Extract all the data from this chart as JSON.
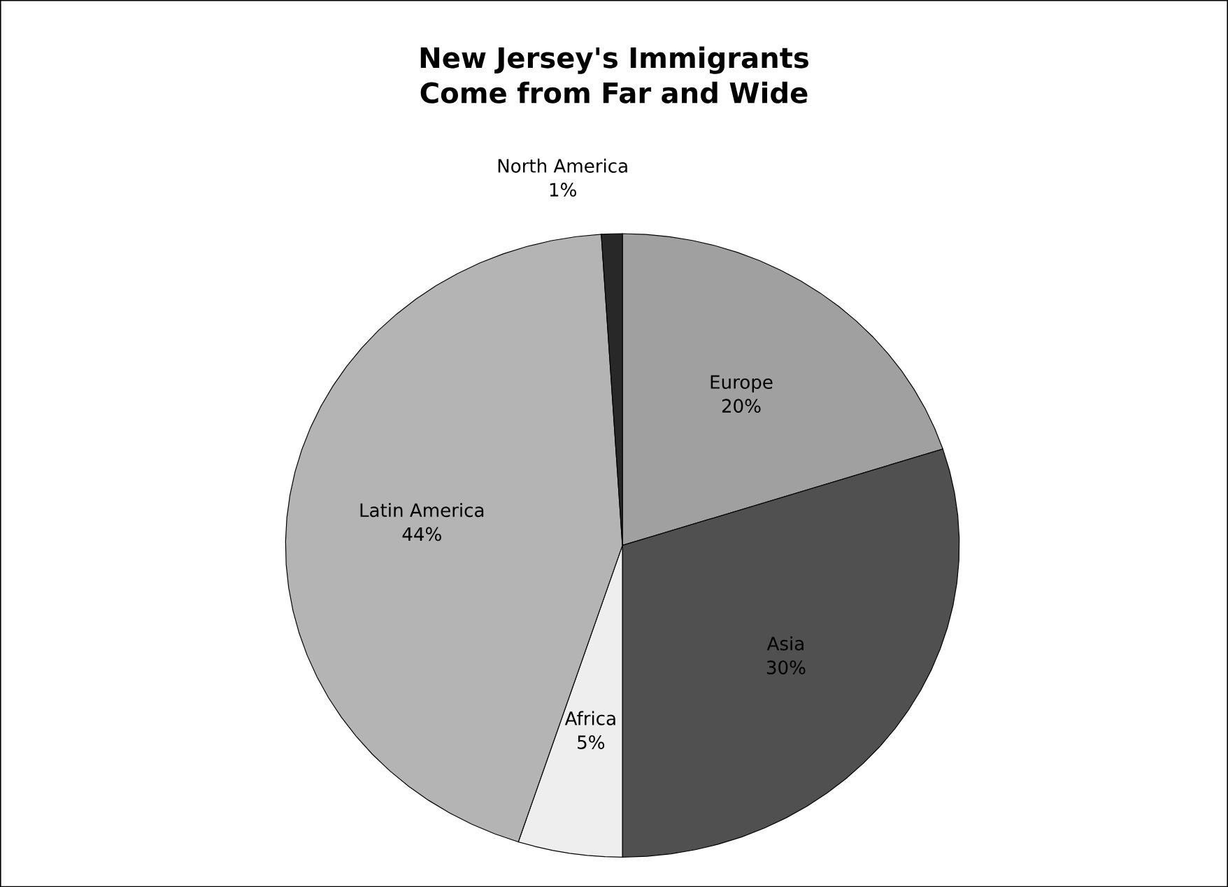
{
  "chart_data": {
    "type": "pie",
    "title": "New Jersey's Immigrants Come from Far and Wide",
    "categories": [
      "Europe",
      "Asia",
      "Africa",
      "Latin America",
      "North America"
    ],
    "values": [
      20,
      30,
      5,
      44,
      1
    ],
    "value_labels": [
      "20%",
      "30%",
      "5%",
      "44%",
      "1%"
    ],
    "colors": [
      "#a0a0a0",
      "#505050",
      "#eeeeee",
      "#b4b4b4",
      "#282828"
    ]
  }
}
